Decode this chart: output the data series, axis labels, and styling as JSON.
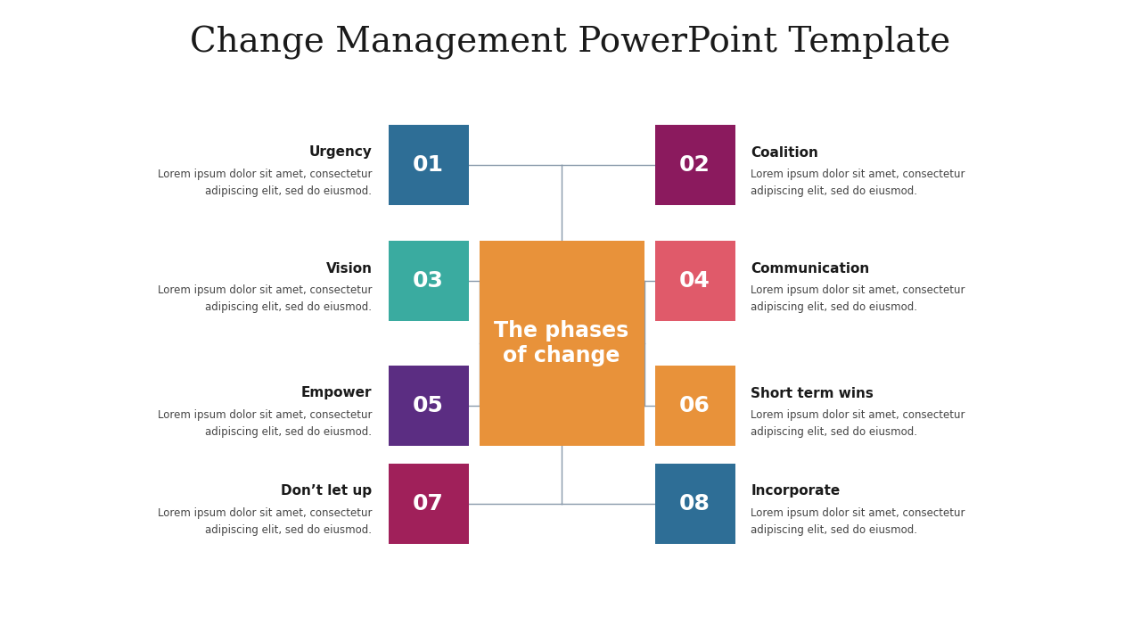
{
  "title": "Change Management PowerPoint Template",
  "title_fontsize": 28,
  "title_font": "serif",
  "background_color": "#ffffff",
  "center_box": {
    "label": "The phases\nof change",
    "color": "#E8923A",
    "text_fontsize": 17
  },
  "phases": [
    {
      "number": "01",
      "title": "Urgency",
      "desc": "Lorem ipsum dolor sit amet, consectetur\nadipiscing elit, sed do eiusmod.",
      "color": "#2E6E96",
      "side": "left",
      "row": 0
    },
    {
      "number": "02",
      "title": "Coalition",
      "desc": "Lorem ipsum dolor sit amet, consectetur\nadipiscing elit, sed do eiusmod.",
      "color": "#8B1A5E",
      "side": "right",
      "row": 0
    },
    {
      "number": "03",
      "title": "Vision",
      "desc": "Lorem ipsum dolor sit amet, consectetur\nadipiscing elit, sed do eiusmod.",
      "color": "#3AABA0",
      "side": "left",
      "row": 1
    },
    {
      "number": "04",
      "title": "Communication",
      "desc": "Lorem ipsum dolor sit amet, consectetur\nadipiscing elit, sed do eiusmod.",
      "color": "#E05A6A",
      "side": "right",
      "row": 1
    },
    {
      "number": "05",
      "title": "Empower",
      "desc": "Lorem ipsum dolor sit amet, consectetur\nadipiscing elit, sed do eiusmod.",
      "color": "#5B2D82",
      "side": "left",
      "row": 2
    },
    {
      "number": "06",
      "title": "Short term wins",
      "desc": "Lorem ipsum dolor sit amet, consectetur\nadipiscing elit, sed do eiusmod.",
      "color": "#E8923A",
      "side": "right",
      "row": 2
    },
    {
      "number": "07",
      "title": "Don’t let up",
      "desc": "Lorem ipsum dolor sit amet, consectetur\nadipiscing elit, sed do eiusmod.",
      "color": "#A0205A",
      "side": "left",
      "row": 3
    },
    {
      "number": "08",
      "title": "Incorporate",
      "desc": "Lorem ipsum dolor sit amet, consectetur\nadipiscing elit, sed do eiusmod.",
      "color": "#2E6E96",
      "side": "right",
      "row": 3
    }
  ],
  "line_color": "#8899AA",
  "line_width": 1.0
}
